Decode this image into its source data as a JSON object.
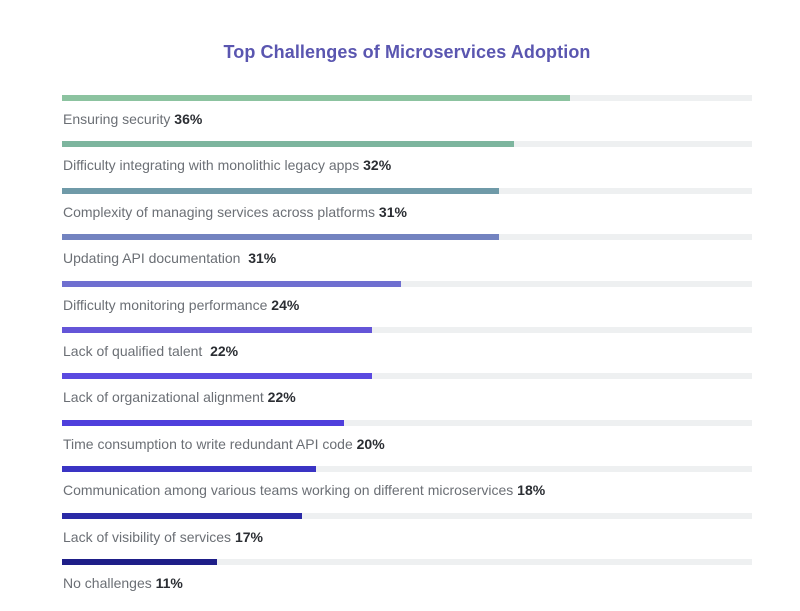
{
  "chart_data": {
    "type": "bar",
    "orientation": "horizontal",
    "title": "Top Challenges of Microservices Adoption",
    "xlim": [
      0,
      100
    ],
    "unit": "%",
    "grid": false,
    "legend": "none",
    "bars": [
      {
        "category": "Ensuring security",
        "value": 36,
        "value_label": "36%",
        "color": "#8cc3a0"
      },
      {
        "category": "Difficulty integrating with monolithic legacy apps",
        "value": 32,
        "value_label": "32%",
        "color": "#7db59e"
      },
      {
        "category": "Complexity of managing services across platforms",
        "value": 31,
        "value_label": "31%",
        "color": "#6f9aa8"
      },
      {
        "category": "Updating API documentation ",
        "value": 31,
        "value_label": "31%",
        "color": "#7383c0"
      },
      {
        "category": "Difficulty monitoring performance",
        "value": 24,
        "value_label": "24%",
        "color": "#6f6fd0"
      },
      {
        "category": "Lack of qualified talent ",
        "value": 22,
        "value_label": "22%",
        "color": "#6455d8"
      },
      {
        "category": "Lack of organizational alignment",
        "value": 22,
        "value_label": "22%",
        "color": "#5a4ae0"
      },
      {
        "category": "Time consumption to write redundant API code",
        "value": 20,
        "value_label": "20%",
        "color": "#4f3fdc"
      },
      {
        "category": "Communication among various teams working on different microservices",
        "value": 18,
        "value_label": "18%",
        "color": "#3a34c4"
      },
      {
        "category": "Lack of visibility of services",
        "value": 17,
        "value_label": "17%",
        "color": "#2a2aa6"
      },
      {
        "category": "No challenges",
        "value": 11,
        "value_label": "11%",
        "color": "#1e1e88"
      }
    ]
  }
}
